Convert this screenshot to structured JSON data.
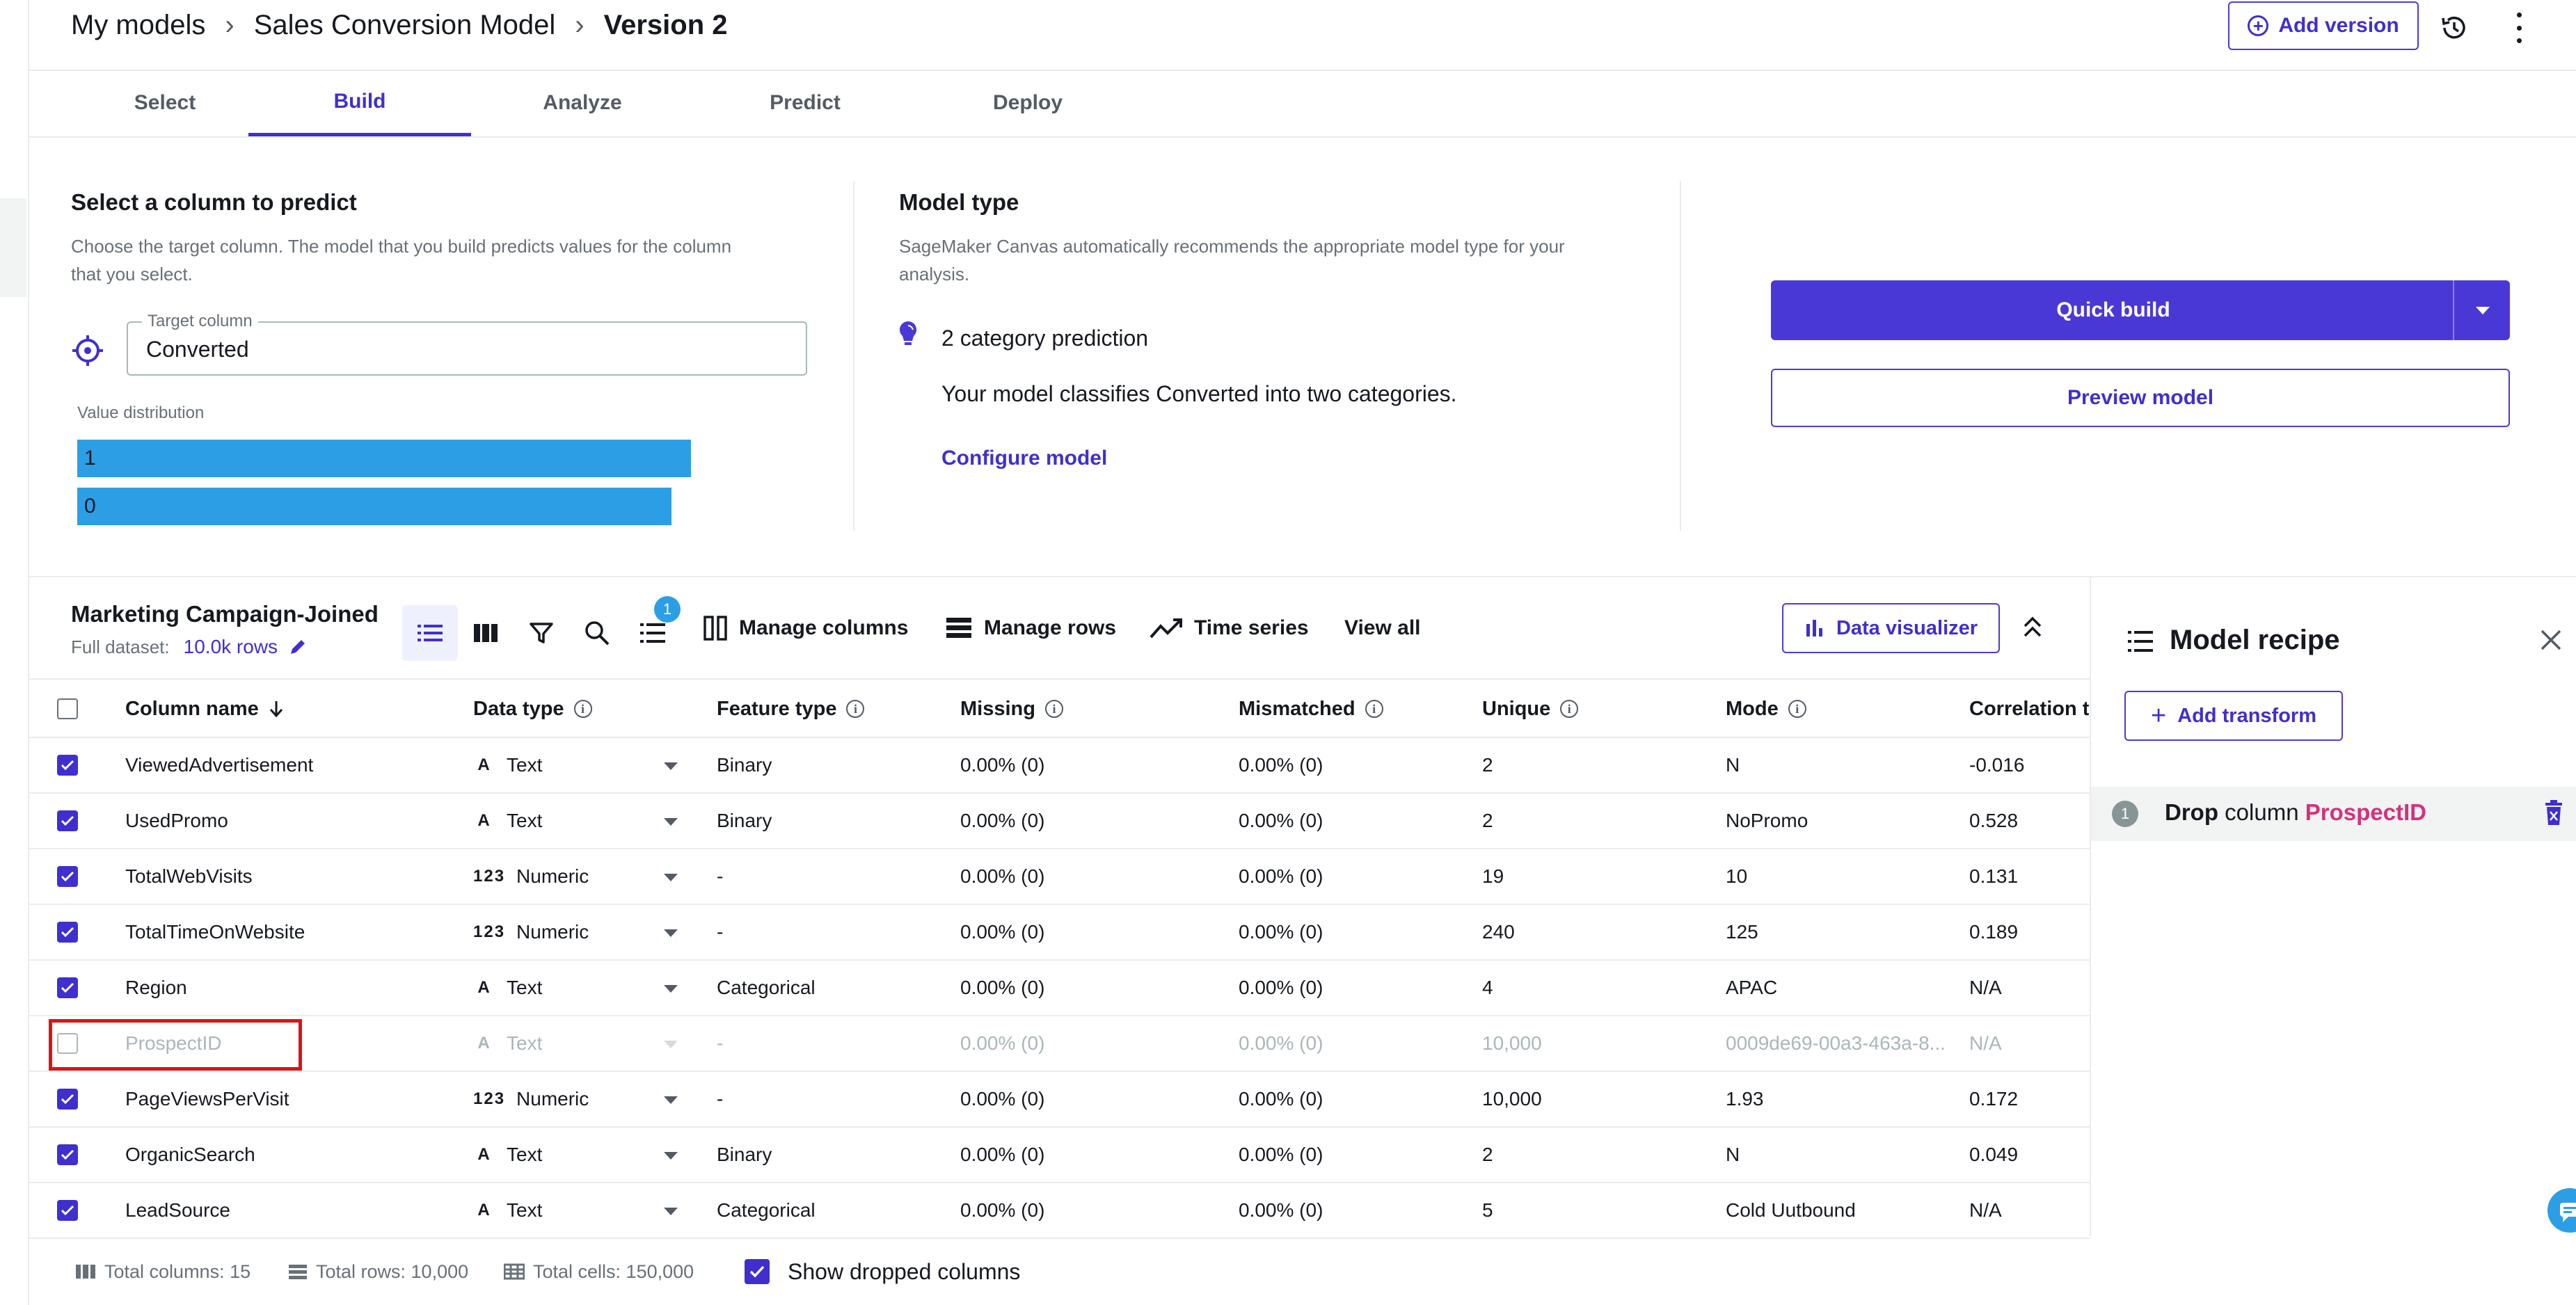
{
  "breadcrumb": {
    "root": "My models",
    "model": "Sales Conversion Model",
    "current": "Version 2"
  },
  "header": {
    "add_version": "Add version"
  },
  "tabs": [
    "Select",
    "Build",
    "Analyze",
    "Predict",
    "Deploy"
  ],
  "active_tab": "Build",
  "target": {
    "title": "Select a column to predict",
    "desc_line1": "Choose the target column. The model that you build predicts values for the column",
    "desc_line2": "that you select.",
    "field_label": "Target column",
    "field_value": "Converted",
    "dist_label": "Value distribution",
    "dist": [
      {
        "label": "1",
        "share": 0.505
      },
      {
        "label": "0",
        "share": 0.495
      }
    ]
  },
  "model_type": {
    "title": "Model type",
    "desc_line1": "SageMaker Canvas automatically recommends the appropriate model type for your",
    "desc_line2": "analysis.",
    "type_name": "2 category prediction",
    "type_desc": "Your model classifies Converted into two categories.",
    "configure": "Configure model"
  },
  "actions": {
    "quick_build": "Quick build",
    "preview": "Preview model"
  },
  "dataset": {
    "name": "Marketing Campaign-Joined",
    "full_label": "Full dataset:",
    "rows": "10.0k rows",
    "recipe_count": "1",
    "manage_columns": "Manage columns",
    "manage_rows": "Manage rows",
    "time_series": "Time series",
    "view_all": "View all",
    "data_visualizer": "Data visualizer"
  },
  "table": {
    "headers": {
      "column_name": "Column name",
      "data_type": "Data type",
      "feature_type": "Feature type",
      "missing": "Missing",
      "mismatched": "Mismatched",
      "unique": "Unique",
      "mode": "Mode",
      "correlation": "Correlation to"
    },
    "rows": [
      {
        "name": "ViewedAdvertisement",
        "icon": "A",
        "type": "Text",
        "feature": "Binary",
        "missing": "0.00% (0)",
        "mismatched": "0.00% (0)",
        "unique": "2",
        "mode": "N",
        "corr": "-0.016",
        "checked": true
      },
      {
        "name": "UsedPromo",
        "icon": "A",
        "type": "Text",
        "feature": "Binary",
        "missing": "0.00% (0)",
        "mismatched": "0.00% (0)",
        "unique": "2",
        "mode": "NoPromo",
        "corr": "0.528",
        "checked": true
      },
      {
        "name": "TotalWebVisits",
        "icon": "123",
        "type": "Numeric",
        "feature": "-",
        "missing": "0.00% (0)",
        "mismatched": "0.00% (0)",
        "unique": "19",
        "mode": "10",
        "corr": "0.131",
        "checked": true
      },
      {
        "name": "TotalTimeOnWebsite",
        "icon": "123",
        "type": "Numeric",
        "feature": "-",
        "missing": "0.00% (0)",
        "mismatched": "0.00% (0)",
        "unique": "240",
        "mode": "125",
        "corr": "0.189",
        "checked": true
      },
      {
        "name": "Region",
        "icon": "A",
        "type": "Text",
        "feature": "Categorical",
        "missing": "0.00% (0)",
        "mismatched": "0.00% (0)",
        "unique": "4",
        "mode": "APAC",
        "corr": "N/A",
        "checked": true
      },
      {
        "name": "ProspectID",
        "icon": "A",
        "type": "Text",
        "feature": "-",
        "missing": "0.00% (0)",
        "mismatched": "0.00% (0)",
        "unique": "10,000",
        "mode": "0009de69-00a3-463a-8...",
        "corr": "N/A",
        "checked": false
      },
      {
        "name": "PageViewsPerVisit",
        "icon": "123",
        "type": "Numeric",
        "feature": "-",
        "missing": "0.00% (0)",
        "mismatched": "0.00% (0)",
        "unique": "10,000",
        "mode": "1.93",
        "corr": "0.172",
        "checked": true
      },
      {
        "name": "OrganicSearch",
        "icon": "A",
        "type": "Text",
        "feature": "Binary",
        "missing": "0.00% (0)",
        "mismatched": "0.00% (0)",
        "unique": "2",
        "mode": "N",
        "corr": "0.049",
        "checked": true
      },
      {
        "name": "LeadSource",
        "icon": "A",
        "type": "Text",
        "feature": "Categorical",
        "missing": "0.00% (0)",
        "mismatched": "0.00% (0)",
        "unique": "5",
        "mode": "Cold Uutbound",
        "corr": "N/A",
        "checked": true
      }
    ]
  },
  "recipe": {
    "title": "Model recipe",
    "add_transform": "Add transform",
    "steps": [
      {
        "num": "1",
        "action": "Drop",
        "word": "column",
        "column": "ProspectID"
      }
    ]
  },
  "footer": {
    "total_columns": "Total columns: 15",
    "total_rows": "Total rows: 10,000",
    "total_cells": "Total cells: 150,000",
    "show_dropped": "Show dropped columns"
  }
}
